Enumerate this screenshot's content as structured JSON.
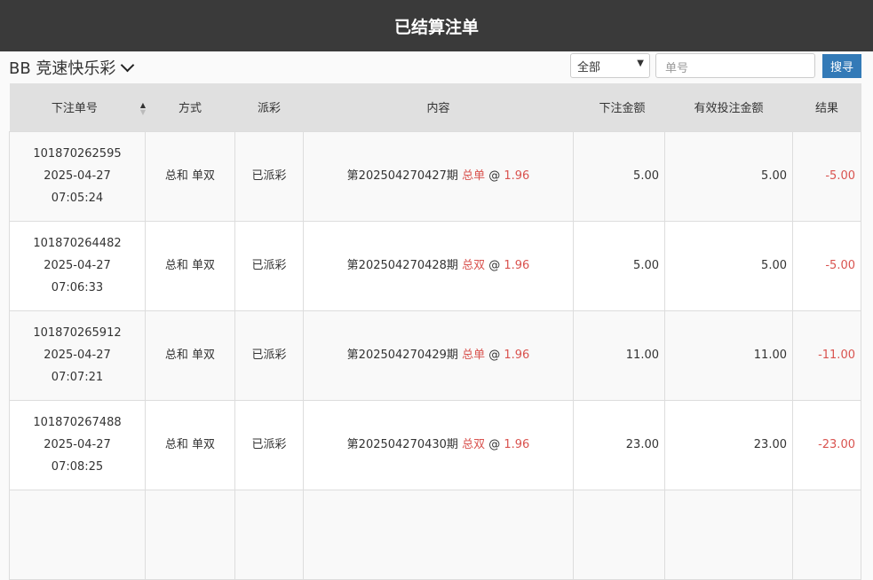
{
  "header": {
    "title": "已结算注单"
  },
  "toolbar": {
    "game": "BB 竞速快乐彩",
    "filter": "全部",
    "search_placeholder": "单号",
    "search_label": "搜寻"
  },
  "table": {
    "columns": [
      "下注单号",
      "方式",
      "派彩",
      "内容",
      "下注金额",
      "有效投注金额",
      "结果"
    ],
    "rows": [
      {
        "id": "101870262595",
        "date": "2025-04-27",
        "time": "07:05:24",
        "method": "总和 单双",
        "payout": "已派彩",
        "period": "第202504270427期",
        "pick": "总单",
        "at": "@",
        "odds": "1.96",
        "amount": "5.00",
        "valid": "5.00",
        "result": "-5.00"
      },
      {
        "id": "101870264482",
        "date": "2025-04-27",
        "time": "07:06:33",
        "method": "总和 单双",
        "payout": "已派彩",
        "period": "第202504270428期",
        "pick": "总双",
        "at": "@",
        "odds": "1.96",
        "amount": "5.00",
        "valid": "5.00",
        "result": "-5.00"
      },
      {
        "id": "101870265912",
        "date": "2025-04-27",
        "time": "07:07:21",
        "method": "总和 单双",
        "payout": "已派彩",
        "period": "第202504270429期",
        "pick": "总单",
        "at": "@",
        "odds": "1.96",
        "amount": "11.00",
        "valid": "11.00",
        "result": "-11.00"
      },
      {
        "id": "101870267488",
        "date": "2025-04-27",
        "time": "07:08:25",
        "method": "总和 单双",
        "payout": "已派彩",
        "period": "第202504270430期",
        "pick": "总双",
        "at": "@",
        "odds": "1.96",
        "amount": "23.00",
        "valid": "23.00",
        "result": "-23.00"
      }
    ]
  }
}
